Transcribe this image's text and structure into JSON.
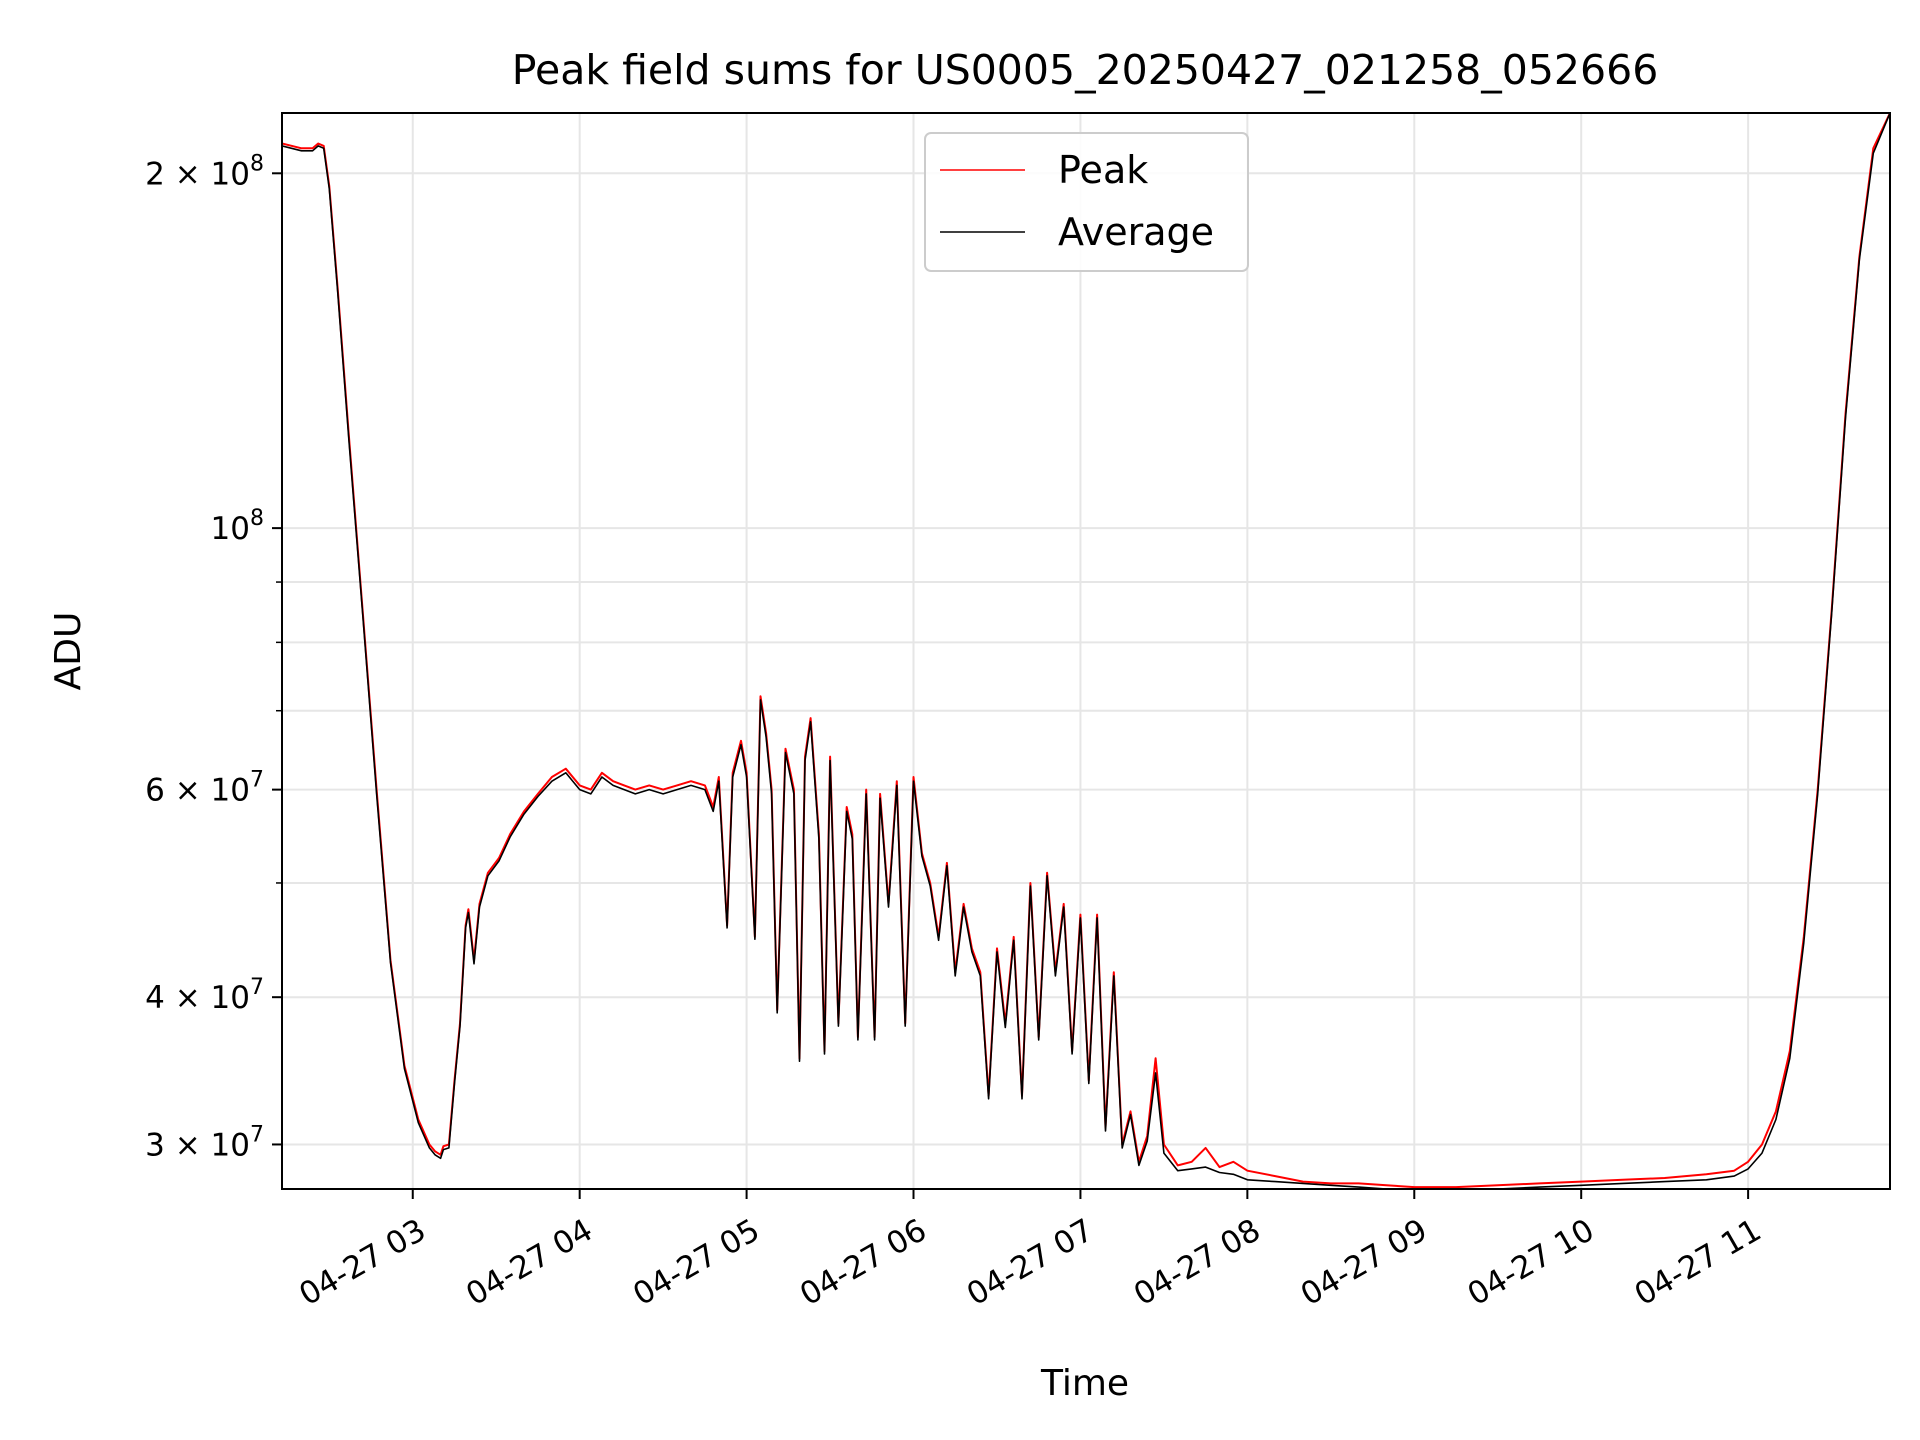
{
  "chart_data": {
    "type": "line",
    "title": "Peak field sums for US0005_20250427_021258_052666",
    "xlabel": "Time",
    "ylabel": "ADU",
    "yscale": "log",
    "xlim": [
      "2025-04-27 02:13",
      "2025-04-27 11:51"
    ],
    "ylim": [
      27500000,
      225000000
    ],
    "grid": true,
    "legend_position": "top-center",
    "x_ticks": [
      {
        "time": "2025-04-27 03:00",
        "label": "04-27 03"
      },
      {
        "time": "2025-04-27 04:00",
        "label": "04-27 04"
      },
      {
        "time": "2025-04-27 05:00",
        "label": "04-27 05"
      },
      {
        "time": "2025-04-27 06:00",
        "label": "04-27 06"
      },
      {
        "time": "2025-04-27 07:00",
        "label": "04-27 07"
      },
      {
        "time": "2025-04-27 08:00",
        "label": "04-27 08"
      },
      {
        "time": "2025-04-27 09:00",
        "label": "04-27 09"
      },
      {
        "time": "2025-04-27 10:00",
        "label": "04-27 10"
      },
      {
        "time": "2025-04-27 11:00",
        "label": "04-27 11"
      }
    ],
    "y_ticks_major": [
      {
        "value": 30000000,
        "base": "3 × 10",
        "exp": "7"
      },
      {
        "value": 40000000,
        "base": "4 × 10",
        "exp": "7"
      },
      {
        "value": 60000000,
        "base": "6 × 10",
        "exp": "7"
      },
      {
        "value": 100000000,
        "base": "10",
        "exp": "8"
      },
      {
        "value": 200000000,
        "base": "2 × 10",
        "exp": "8"
      }
    ],
    "y_ticks_minor": [
      50000000,
      70000000,
      80000000,
      90000000
    ],
    "series": [
      {
        "name": "Peak",
        "color": "#ff0000",
        "x": [
          "2025-04-27 02:13",
          "2025-04-27 02:20",
          "2025-04-27 02:24",
          "2025-04-27 02:26",
          "2025-04-27 02:28",
          "2025-04-27 02:30",
          "2025-04-27 02:33",
          "2025-04-27 02:37",
          "2025-04-27 02:42",
          "2025-04-27 02:47",
          "2025-04-27 02:52",
          "2025-04-27 02:57",
          "2025-04-27 03:02",
          "2025-04-27 03:06",
          "2025-04-27 03:08",
          "2025-04-27 03:10",
          "2025-04-27 03:11",
          "2025-04-27 03:13",
          "2025-04-27 03:15",
          "2025-04-27 03:17",
          "2025-04-27 03:19",
          "2025-04-27 03:20",
          "2025-04-27 03:22",
          "2025-04-27 03:24",
          "2025-04-27 03:27",
          "2025-04-27 03:31",
          "2025-04-27 03:35",
          "2025-04-27 03:40",
          "2025-04-27 03:45",
          "2025-04-27 03:50",
          "2025-04-27 03:55",
          "2025-04-27 04:00",
          "2025-04-27 04:04",
          "2025-04-27 04:08",
          "2025-04-27 04:12",
          "2025-04-27 04:16",
          "2025-04-27 04:20",
          "2025-04-27 04:25",
          "2025-04-27 04:30",
          "2025-04-27 04:35",
          "2025-04-27 04:40",
          "2025-04-27 04:45",
          "2025-04-27 04:48",
          "2025-04-27 04:50",
          "2025-04-27 04:53",
          "2025-04-27 04:55",
          "2025-04-27 04:58",
          "2025-04-27 05:00",
          "2025-04-27 05:03",
          "2025-04-27 05:05",
          "2025-04-27 05:07",
          "2025-04-27 05:09",
          "2025-04-27 05:11",
          "2025-04-27 05:14",
          "2025-04-27 05:17",
          "2025-04-27 05:19",
          "2025-04-27 05:21",
          "2025-04-27 05:23",
          "2025-04-27 05:26",
          "2025-04-27 05:28",
          "2025-04-27 05:30",
          "2025-04-27 05:33",
          "2025-04-27 05:36",
          "2025-04-27 05:38",
          "2025-04-27 05:40",
          "2025-04-27 05:43",
          "2025-04-27 05:46",
          "2025-04-27 05:48",
          "2025-04-27 05:51",
          "2025-04-27 05:54",
          "2025-04-27 05:57",
          "2025-04-27 06:00",
          "2025-04-27 06:03",
          "2025-04-27 06:06",
          "2025-04-27 06:09",
          "2025-04-27 06:12",
          "2025-04-27 06:15",
          "2025-04-27 06:18",
          "2025-04-27 06:21",
          "2025-04-27 06:24",
          "2025-04-27 06:27",
          "2025-04-27 06:30",
          "2025-04-27 06:33",
          "2025-04-27 06:36",
          "2025-04-27 06:39",
          "2025-04-27 06:42",
          "2025-04-27 06:45",
          "2025-04-27 06:48",
          "2025-04-27 06:51",
          "2025-04-27 06:54",
          "2025-04-27 06:57",
          "2025-04-27 07:00",
          "2025-04-27 07:03",
          "2025-04-27 07:06",
          "2025-04-27 07:09",
          "2025-04-27 07:12",
          "2025-04-27 07:15",
          "2025-04-27 07:18",
          "2025-04-27 07:21",
          "2025-04-27 07:24",
          "2025-04-27 07:27",
          "2025-04-27 07:30",
          "2025-04-27 07:35",
          "2025-04-27 07:40",
          "2025-04-27 07:45",
          "2025-04-27 07:50",
          "2025-04-27 07:55",
          "2025-04-27 08:00",
          "2025-04-27 08:10",
          "2025-04-27 08:20",
          "2025-04-27 08:30",
          "2025-04-27 08:40",
          "2025-04-27 08:50",
          "2025-04-27 09:00",
          "2025-04-27 09:15",
          "2025-04-27 09:30",
          "2025-04-27 09:45",
          "2025-04-27 10:00",
          "2025-04-27 10:15",
          "2025-04-27 10:30",
          "2025-04-27 10:45",
          "2025-04-27 10:55",
          "2025-04-27 11:00",
          "2025-04-27 11:05",
          "2025-04-27 11:10",
          "2025-04-27 11:15",
          "2025-04-27 11:20",
          "2025-04-27 11:25",
          "2025-04-27 11:30",
          "2025-04-27 11:35",
          "2025-04-27 11:40",
          "2025-04-27 11:45",
          "2025-04-27 11:51"
        ],
        "values": [
          212000000,
          210000000,
          210000000,
          212000000,
          211000000,
          195000000,
          160000000,
          120000000,
          85000000,
          60000000,
          43000000,
          35000000,
          31500000,
          30000000,
          29600000,
          29400000,
          29900000,
          30000000,
          34000000,
          38000000,
          46000000,
          47500000,
          43000000,
          48000000,
          51000000,
          52500000,
          55000000,
          57500000,
          59500000,
          61500000,
          62500000,
          60500000,
          60000000,
          62000000,
          61000000,
          60500000,
          60000000,
          60500000,
          60000000,
          60500000,
          61000000,
          60500000,
          58000000,
          61500000,
          46000000,
          62000000,
          66000000,
          62000000,
          45000000,
          72000000,
          67000000,
          60000000,
          39000000,
          65000000,
          60000000,
          35500000,
          64000000,
          69000000,
          55000000,
          36000000,
          64000000,
          38000000,
          58000000,
          55000000,
          37000000,
          60000000,
          37000000,
          59500000,
          48000000,
          61000000,
          38000000,
          61500000,
          53000000,
          50000000,
          45000000,
          52000000,
          42000000,
          48000000,
          44000000,
          42000000,
          33000000,
          44000000,
          38000000,
          45000000,
          33000000,
          50000000,
          37000000,
          51000000,
          42000000,
          48000000,
          36000000,
          47000000,
          34000000,
          47000000,
          31000000,
          42000000,
          30000000,
          32000000,
          29000000,
          30500000,
          35500000,
          30000000,
          28800000,
          29000000,
          29800000,
          28700000,
          29000000,
          28500000,
          28200000,
          27900000,
          27800000,
          27800000,
          27700000,
          27600000,
          27600000,
          27700000,
          27800000,
          27900000,
          28000000,
          28100000,
          28300000,
          28500000,
          29000000,
          30000000,
          32000000,
          36000000,
          45000000,
          60000000,
          85000000,
          125000000,
          170000000,
          210000000,
          225000000
        ]
      },
      {
        "name": "Average",
        "color": "#000000",
        "x": [
          "2025-04-27 02:13",
          "2025-04-27 02:20",
          "2025-04-27 02:24",
          "2025-04-27 02:26",
          "2025-04-27 02:28",
          "2025-04-27 02:30",
          "2025-04-27 02:33",
          "2025-04-27 02:37",
          "2025-04-27 02:42",
          "2025-04-27 02:47",
          "2025-04-27 02:52",
          "2025-04-27 02:57",
          "2025-04-27 03:02",
          "2025-04-27 03:06",
          "2025-04-27 03:08",
          "2025-04-27 03:10",
          "2025-04-27 03:11",
          "2025-04-27 03:13",
          "2025-04-27 03:15",
          "2025-04-27 03:17",
          "2025-04-27 03:19",
          "2025-04-27 03:20",
          "2025-04-27 03:22",
          "2025-04-27 03:24",
          "2025-04-27 03:27",
          "2025-04-27 03:31",
          "2025-04-27 03:35",
          "2025-04-27 03:40",
          "2025-04-27 03:45",
          "2025-04-27 03:50",
          "2025-04-27 03:55",
          "2025-04-27 04:00",
          "2025-04-27 04:04",
          "2025-04-27 04:08",
          "2025-04-27 04:12",
          "2025-04-27 04:16",
          "2025-04-27 04:20",
          "2025-04-27 04:25",
          "2025-04-27 04:30",
          "2025-04-27 04:35",
          "2025-04-27 04:40",
          "2025-04-27 04:45",
          "2025-04-27 04:48",
          "2025-04-27 04:50",
          "2025-04-27 04:53",
          "2025-04-27 04:55",
          "2025-04-27 04:58",
          "2025-04-27 05:00",
          "2025-04-27 05:03",
          "2025-04-27 05:05",
          "2025-04-27 05:07",
          "2025-04-27 05:09",
          "2025-04-27 05:11",
          "2025-04-27 05:14",
          "2025-04-27 05:17",
          "2025-04-27 05:19",
          "2025-04-27 05:21",
          "2025-04-27 05:23",
          "2025-04-27 05:26",
          "2025-04-27 05:28",
          "2025-04-27 05:30",
          "2025-04-27 05:33",
          "2025-04-27 05:36",
          "2025-04-27 05:38",
          "2025-04-27 05:40",
          "2025-04-27 05:43",
          "2025-04-27 05:46",
          "2025-04-27 05:48",
          "2025-04-27 05:51",
          "2025-04-27 05:54",
          "2025-04-27 05:57",
          "2025-04-27 06:00",
          "2025-04-27 06:03",
          "2025-04-27 06:06",
          "2025-04-27 06:09",
          "2025-04-27 06:12",
          "2025-04-27 06:15",
          "2025-04-27 06:18",
          "2025-04-27 06:21",
          "2025-04-27 06:24",
          "2025-04-27 06:27",
          "2025-04-27 06:30",
          "2025-04-27 06:33",
          "2025-04-27 06:36",
          "2025-04-27 06:39",
          "2025-04-27 06:42",
          "2025-04-27 06:45",
          "2025-04-27 06:48",
          "2025-04-27 06:51",
          "2025-04-27 06:54",
          "2025-04-27 06:57",
          "2025-04-27 07:00",
          "2025-04-27 07:03",
          "2025-04-27 07:06",
          "2025-04-27 07:09",
          "2025-04-27 07:12",
          "2025-04-27 07:15",
          "2025-04-27 07:18",
          "2025-04-27 07:21",
          "2025-04-27 07:24",
          "2025-04-27 07:27",
          "2025-04-27 07:30",
          "2025-04-27 07:35",
          "2025-04-27 07:40",
          "2025-04-27 07:45",
          "2025-04-27 07:50",
          "2025-04-27 07:55",
          "2025-04-27 08:00",
          "2025-04-27 08:10",
          "2025-04-27 08:20",
          "2025-04-27 08:30",
          "2025-04-27 08:40",
          "2025-04-27 08:50",
          "2025-04-27 09:00",
          "2025-04-27 09:15",
          "2025-04-27 09:30",
          "2025-04-27 09:45",
          "2025-04-27 10:00",
          "2025-04-27 10:15",
          "2025-04-27 10:30",
          "2025-04-27 10:45",
          "2025-04-27 10:55",
          "2025-04-27 11:00",
          "2025-04-27 11:05",
          "2025-04-27 11:10",
          "2025-04-27 11:15",
          "2025-04-27 11:20",
          "2025-04-27 11:25",
          "2025-04-27 11:30",
          "2025-04-27 11:35",
          "2025-04-27 11:40",
          "2025-04-27 11:45",
          "2025-04-27 11:51"
        ],
        "values": [
          211000000,
          209000000,
          209000000,
          211000000,
          210000000,
          194000000,
          159000000,
          119000000,
          84500000,
          59500000,
          42800000,
          34800000,
          31300000,
          29800000,
          29400000,
          29200000,
          29700000,
          29800000,
          33800000,
          37800000,
          45800000,
          47200000,
          42700000,
          47700000,
          50700000,
          52200000,
          54700000,
          57200000,
          59200000,
          61000000,
          62000000,
          60000000,
          59500000,
          61500000,
          60500000,
          60000000,
          59500000,
          60000000,
          59500000,
          60000000,
          60500000,
          60000000,
          57500000,
          61000000,
          45800000,
          61500000,
          65500000,
          61500000,
          44800000,
          71500000,
          66500000,
          59500000,
          38800000,
          64500000,
          59500000,
          35300000,
          63500000,
          68500000,
          54500000,
          35800000,
          63500000,
          37800000,
          57500000,
          54500000,
          36800000,
          59500000,
          36800000,
          59000000,
          47700000,
          60500000,
          37800000,
          61000000,
          52700000,
          49700000,
          44700000,
          51700000,
          41700000,
          47700000,
          43700000,
          41700000,
          32800000,
          43700000,
          37700000,
          44700000,
          32800000,
          49700000,
          36800000,
          50700000,
          41700000,
          47700000,
          35800000,
          46700000,
          33800000,
          46700000,
          30800000,
          41700000,
          29800000,
          31800000,
          28800000,
          30200000,
          34500000,
          29500000,
          28500000,
          28600000,
          28700000,
          28400000,
          28300000,
          28000000,
          27900000,
          27800000,
          27700000,
          27600000,
          27500000,
          27400000,
          27400000,
          27500000,
          27600000,
          27700000,
          27800000,
          27900000,
          28000000,
          28200000,
          28600000,
          29500000,
          31500000,
          35500000,
          44500000,
          59500000,
          84500000,
          124000000,
          169000000,
          208000000,
          225000000
        ]
      }
    ]
  }
}
